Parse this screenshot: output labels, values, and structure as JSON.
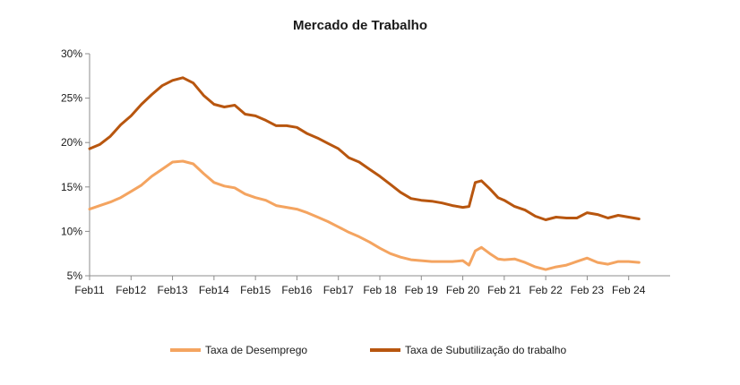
{
  "chart_data": {
    "type": "line",
    "title": "Mercado de Trabalho",
    "xlabel": "",
    "ylabel": "",
    "x_ticks": [
      "Feb11",
      "Feb12",
      "Feb13",
      "Feb14",
      "Feb15",
      "Feb16",
      "Feb17",
      "Feb 18",
      "Feb 19",
      "Feb 20",
      "Feb 21",
      "Feb 22",
      "Feb 23",
      "Feb 24"
    ],
    "x_tick_positions": [
      2011.0,
      2012.0,
      2013.0,
      2014.0,
      2015.0,
      2016.0,
      2017.0,
      2018.0,
      2019.0,
      2020.0,
      2021.0,
      2022.0,
      2023.0,
      2024.0
    ],
    "xlim": [
      2011.0,
      2025.0
    ],
    "ylim": [
      5,
      30
    ],
    "y_ticks": [
      "5%",
      "10%",
      "15%",
      "20%",
      "25%",
      "30%"
    ],
    "y_tick_values": [
      5,
      10,
      15,
      20,
      25,
      30
    ],
    "grid": false,
    "legend_position": "bottom",
    "series": [
      {
        "name": "Taxa de Desemprego",
        "color": "#F4A460",
        "points": [
          [
            2011.0,
            12.5
          ],
          [
            2011.25,
            12.9
          ],
          [
            2011.5,
            13.3
          ],
          [
            2011.75,
            13.8
          ],
          [
            2012.0,
            14.5
          ],
          [
            2012.25,
            15.2
          ],
          [
            2012.5,
            16.2
          ],
          [
            2012.75,
            17.0
          ],
          [
            2013.0,
            17.8
          ],
          [
            2013.25,
            17.9
          ],
          [
            2013.5,
            17.6
          ],
          [
            2013.75,
            16.5
          ],
          [
            2014.0,
            15.5
          ],
          [
            2014.25,
            15.1
          ],
          [
            2014.5,
            14.9
          ],
          [
            2014.75,
            14.2
          ],
          [
            2015.0,
            13.8
          ],
          [
            2015.25,
            13.5
          ],
          [
            2015.5,
            12.9
          ],
          [
            2015.75,
            12.7
          ],
          [
            2016.0,
            12.5
          ],
          [
            2016.25,
            12.1
          ],
          [
            2016.5,
            11.6
          ],
          [
            2016.75,
            11.1
          ],
          [
            2017.0,
            10.5
          ],
          [
            2017.25,
            9.9
          ],
          [
            2017.5,
            9.4
          ],
          [
            2017.75,
            8.8
          ],
          [
            2018.0,
            8.1
          ],
          [
            2018.25,
            7.5
          ],
          [
            2018.5,
            7.1
          ],
          [
            2018.75,
            6.8
          ],
          [
            2019.0,
            6.7
          ],
          [
            2019.25,
            6.6
          ],
          [
            2019.5,
            6.6
          ],
          [
            2019.75,
            6.6
          ],
          [
            2020.0,
            6.7
          ],
          [
            2020.15,
            6.2
          ],
          [
            2020.3,
            7.8
          ],
          [
            2020.45,
            8.2
          ],
          [
            2020.65,
            7.5
          ],
          [
            2020.85,
            6.9
          ],
          [
            2021.0,
            6.8
          ],
          [
            2021.25,
            6.9
          ],
          [
            2021.5,
            6.5
          ],
          [
            2021.75,
            6.0
          ],
          [
            2022.0,
            5.7
          ],
          [
            2022.25,
            6.0
          ],
          [
            2022.5,
            6.2
          ],
          [
            2022.75,
            6.6
          ],
          [
            2023.0,
            7.0
          ],
          [
            2023.25,
            6.5
          ],
          [
            2023.5,
            6.3
          ],
          [
            2023.75,
            6.6
          ],
          [
            2024.0,
            6.6
          ],
          [
            2024.25,
            6.5
          ]
        ]
      },
      {
        "name": "Taxa de Subutilização do trabalho",
        "color": "#B8560F",
        "points": [
          [
            2011.0,
            19.3
          ],
          [
            2011.25,
            19.8
          ],
          [
            2011.5,
            20.7
          ],
          [
            2011.75,
            22.0
          ],
          [
            2012.0,
            23.0
          ],
          [
            2012.25,
            24.3
          ],
          [
            2012.5,
            25.4
          ],
          [
            2012.75,
            26.4
          ],
          [
            2013.0,
            27.0
          ],
          [
            2013.25,
            27.3
          ],
          [
            2013.5,
            26.7
          ],
          [
            2013.75,
            25.3
          ],
          [
            2014.0,
            24.3
          ],
          [
            2014.25,
            24.0
          ],
          [
            2014.5,
            24.2
          ],
          [
            2014.75,
            23.2
          ],
          [
            2015.0,
            23.0
          ],
          [
            2015.25,
            22.5
          ],
          [
            2015.5,
            21.9
          ],
          [
            2015.75,
            21.9
          ],
          [
            2016.0,
            21.7
          ],
          [
            2016.25,
            21.0
          ],
          [
            2016.5,
            20.5
          ],
          [
            2016.75,
            19.9
          ],
          [
            2017.0,
            19.3
          ],
          [
            2017.25,
            18.3
          ],
          [
            2017.5,
            17.8
          ],
          [
            2017.75,
            17.0
          ],
          [
            2018.0,
            16.2
          ],
          [
            2018.25,
            15.3
          ],
          [
            2018.5,
            14.4
          ],
          [
            2018.75,
            13.7
          ],
          [
            2019.0,
            13.5
          ],
          [
            2019.25,
            13.4
          ],
          [
            2019.5,
            13.2
          ],
          [
            2019.75,
            12.9
          ],
          [
            2020.0,
            12.7
          ],
          [
            2020.15,
            12.8
          ],
          [
            2020.3,
            15.5
          ],
          [
            2020.45,
            15.7
          ],
          [
            2020.65,
            14.8
          ],
          [
            2020.85,
            13.8
          ],
          [
            2021.0,
            13.5
          ],
          [
            2021.25,
            12.8
          ],
          [
            2021.5,
            12.4
          ],
          [
            2021.75,
            11.7
          ],
          [
            2022.0,
            11.3
          ],
          [
            2022.25,
            11.6
          ],
          [
            2022.5,
            11.5
          ],
          [
            2022.75,
            11.5
          ],
          [
            2023.0,
            12.1
          ],
          [
            2023.25,
            11.9
          ],
          [
            2023.5,
            11.5
          ],
          [
            2023.75,
            11.8
          ],
          [
            2024.0,
            11.6
          ],
          [
            2024.25,
            11.4
          ]
        ]
      }
    ]
  }
}
